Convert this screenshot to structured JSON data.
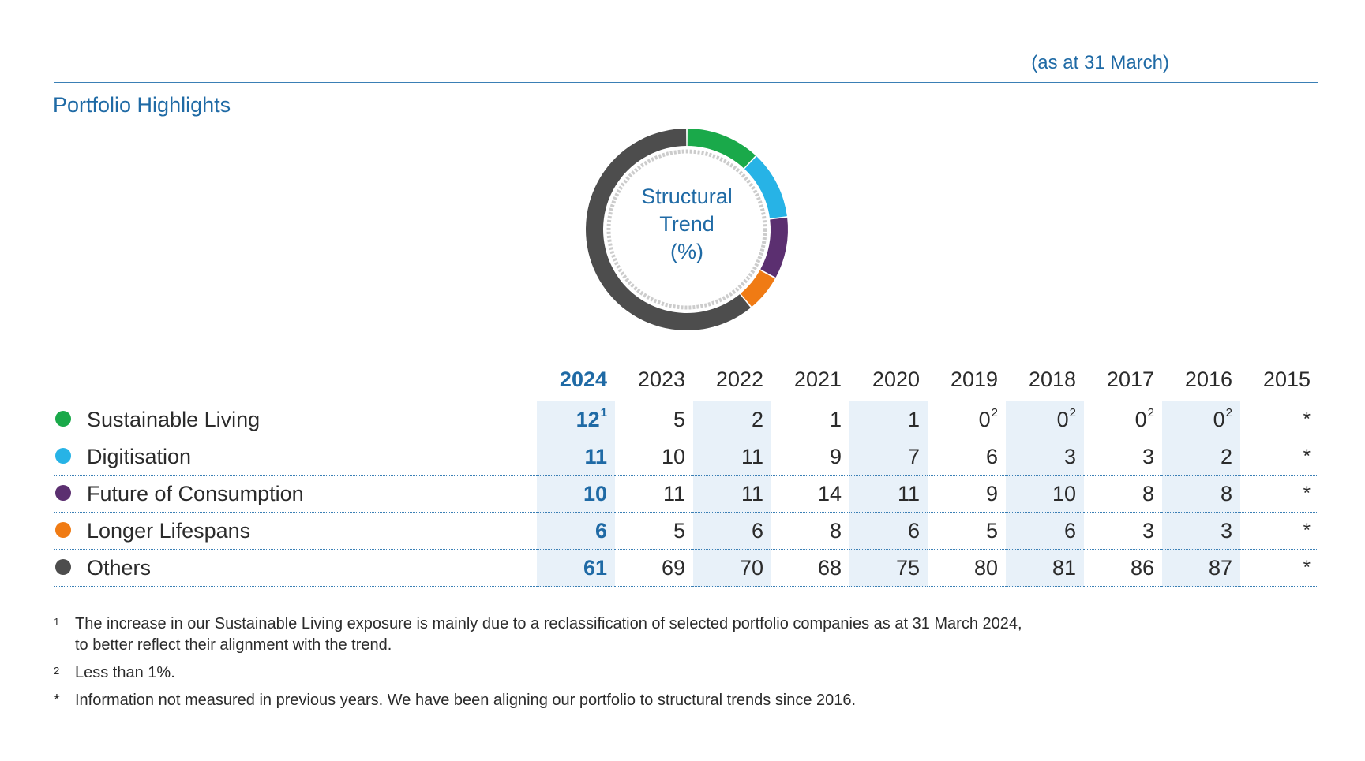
{
  "header": {
    "as_at": "(as at 31 March)",
    "title": "Portfolio Highlights"
  },
  "donut": {
    "center_line1": "Structural",
    "center_line2": "Trend",
    "center_line3": "(%)"
  },
  "chart_data": {
    "type": "pie",
    "title": "Structural Trend (%)",
    "categories": [
      "Sustainable Living",
      "Digitisation",
      "Future of Consumption",
      "Longer Lifespans",
      "Others"
    ],
    "values": [
      12,
      11,
      10,
      6,
      61
    ],
    "colors": [
      "#1aa94a",
      "#27b3e6",
      "#5b2f70",
      "#f07b14",
      "#4d4d4d"
    ],
    "years": [
      "2024",
      "2023",
      "2022",
      "2021",
      "2020",
      "2019",
      "2018",
      "2017",
      "2016",
      "2015"
    ],
    "table": [
      {
        "name": "Sustainable Living",
        "values": [
          "12",
          "5",
          "2",
          "1",
          "1",
          "0",
          "0",
          "0",
          "0",
          "*"
        ],
        "sups": [
          "1",
          "",
          "",
          "",
          "",
          "2",
          "2",
          "2",
          "2",
          ""
        ]
      },
      {
        "name": "Digitisation",
        "values": [
          "11",
          "10",
          "11",
          "9",
          "7",
          "6",
          "3",
          "3",
          "2",
          "*"
        ],
        "sups": [
          "",
          "",
          "",
          "",
          "",
          "",
          "",
          "",
          "",
          ""
        ]
      },
      {
        "name": "Future of Consumption",
        "values": [
          "10",
          "11",
          "11",
          "14",
          "11",
          "9",
          "10",
          "8",
          "8",
          "*"
        ],
        "sups": [
          "",
          "",
          "",
          "",
          "",
          "",
          "",
          "",
          "",
          ""
        ]
      },
      {
        "name": "Longer Lifespans",
        "values": [
          "6",
          "5",
          "6",
          "8",
          "6",
          "5",
          "6",
          "3",
          "3",
          "*"
        ],
        "sups": [
          "",
          "",
          "",
          "",
          "",
          "",
          "",
          "",
          "",
          ""
        ]
      },
      {
        "name": "Others",
        "values": [
          "61",
          "69",
          "70",
          "68",
          "75",
          "80",
          "81",
          "86",
          "87",
          "*"
        ],
        "sups": [
          "",
          "",
          "",
          "",
          "",
          "",
          "",
          "",
          "",
          ""
        ]
      }
    ]
  },
  "footnotes": [
    {
      "marker": "1",
      "text_line1": "The increase in our Sustainable Living exposure is mainly due to a reclassification of selected portfolio companies as at 31 March 2024,",
      "text_line2": "to better reflect their alignment with the trend."
    },
    {
      "marker": "2",
      "text_line1": "Less than 1%."
    },
    {
      "marker": "*",
      "text_line1": "Information not measured in previous years. We have been aligning our portfolio to structural trends since 2016."
    }
  ]
}
